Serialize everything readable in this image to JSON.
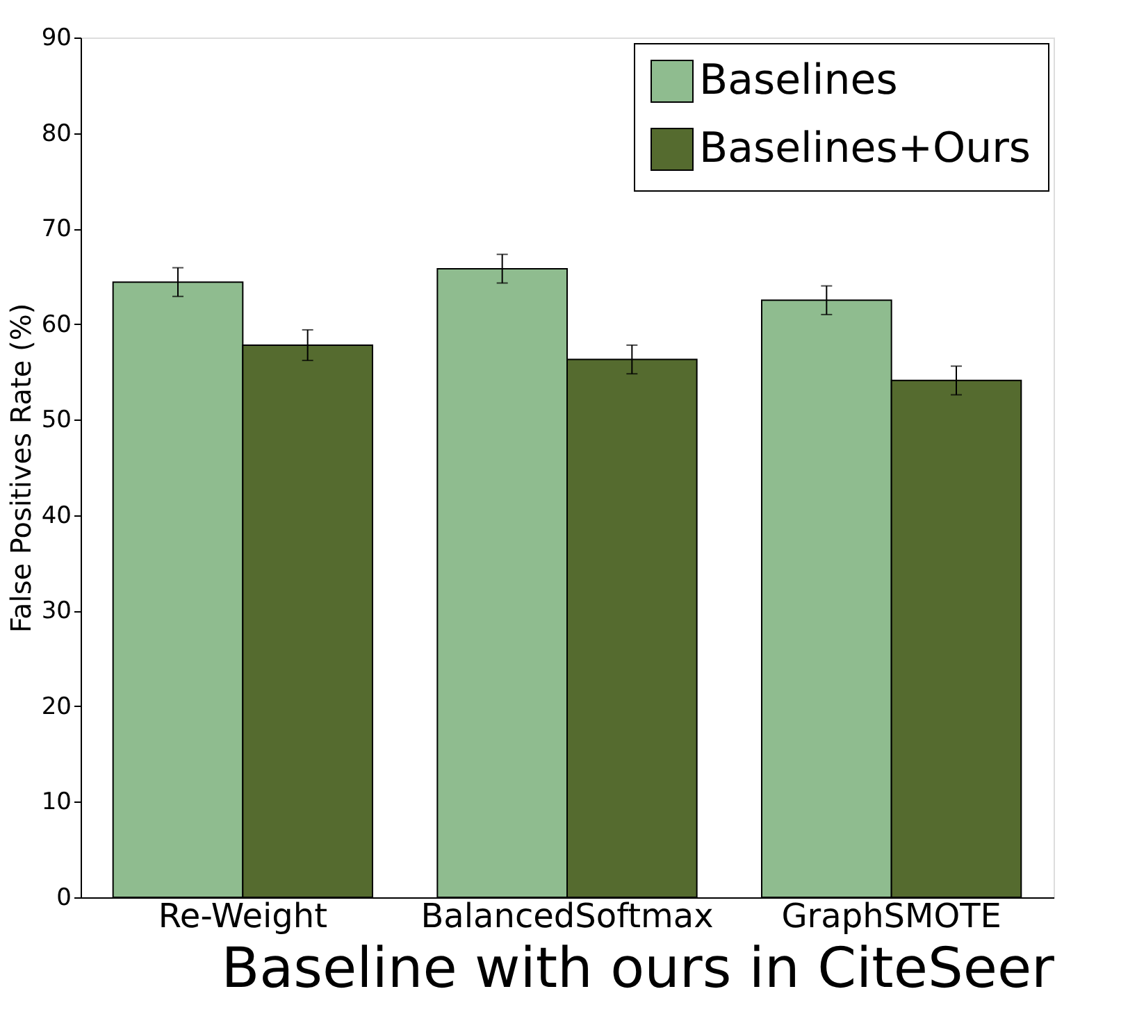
{
  "chart_data": {
    "type": "bar",
    "xlabel": "Baseline with ours in CiteSeer",
    "ylabel": "False Positives Rate (%)",
    "categories": [
      "Re-Weight",
      "BalancedSoftmax",
      "GraphSMOTE"
    ],
    "series": [
      {
        "name": "Baselines",
        "color": "#8fbc8f",
        "values": [
          64.4,
          65.8,
          62.5
        ],
        "errors": [
          1.5,
          1.5,
          1.5
        ]
      },
      {
        "name": "Baselines+Ours",
        "color": "#556b2f",
        "values": [
          57.8,
          56.3,
          54.1
        ],
        "errors": [
          1.6,
          1.5,
          1.5
        ]
      }
    ],
    "ylim": [
      0,
      90
    ],
    "yticks": [
      0,
      10,
      20,
      30,
      40,
      50,
      60,
      70,
      80,
      90
    ],
    "grid": false,
    "legend": "top right"
  }
}
